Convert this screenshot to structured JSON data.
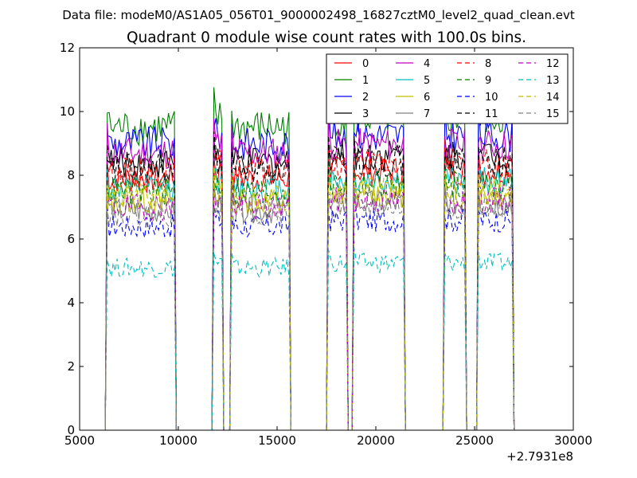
{
  "header": {
    "suptitle": "Data file: modeM0/AS1A05_056T01_9000002498_16827cztM0_level2_quad_clean.evt"
  },
  "chart_data": {
    "type": "line",
    "title": "Quadrant 0 module wise count rates with 100.0s bins.",
    "xlabel": "",
    "ylabel": "",
    "x_offset_label": "+2.7931e8",
    "xlim": [
      5000,
      30000
    ],
    "ylim": [
      0,
      12
    ],
    "xticks": [
      5000,
      10000,
      15000,
      20000,
      25000,
      30000
    ],
    "yticks": [
      0,
      2,
      4,
      6,
      8,
      10,
      12
    ],
    "xtick_labels": [
      "5000",
      "10000",
      "15000",
      "20000",
      "25000",
      "30000"
    ],
    "ytick_labels": [
      "0",
      "2",
      "4",
      "6",
      "8",
      "10",
      "12"
    ],
    "grid": false,
    "legend_position": "top-right",
    "bin_size_s": 100,
    "segments": [
      {
        "start": 6400,
        "end": 9800
      },
      {
        "start": 11800,
        "end": 12200
      },
      {
        "start": 12700,
        "end": 15600
      },
      {
        "start": 17600,
        "end": 18500
      },
      {
        "start": 18900,
        "end": 21400
      },
      {
        "start": 23500,
        "end": 24500
      },
      {
        "start": 25200,
        "end": 26900
      }
    ],
    "series": [
      {
        "name": "0",
        "color": "#ff0000",
        "dash": false,
        "mean": 7.9
      },
      {
        "name": "1",
        "color": "#008000",
        "dash": false,
        "mean": 9.5
      },
      {
        "name": "2",
        "color": "#0000ff",
        "dash": false,
        "mean": 9.0
      },
      {
        "name": "3",
        "color": "#000000",
        "dash": false,
        "mean": 8.4
      },
      {
        "name": "4",
        "color": "#bf00bf",
        "dash": false,
        "mean": 8.7
      },
      {
        "name": "5",
        "color": "#00bfbf",
        "dash": false,
        "mean": 7.6
      },
      {
        "name": "6",
        "color": "#bfbf00",
        "dash": false,
        "mean": 7.2
      },
      {
        "name": "7",
        "color": "#808080",
        "dash": false,
        "mean": 6.9
      },
      {
        "name": "8",
        "color": "#ff0000",
        "dash": true,
        "mean": 8.1
      },
      {
        "name": "9",
        "color": "#008000",
        "dash": true,
        "mean": 7.5
      },
      {
        "name": "10",
        "color": "#0000ff",
        "dash": true,
        "mean": 6.4
      },
      {
        "name": "11",
        "color": "#000000",
        "dash": true,
        "mean": 8.2
      },
      {
        "name": "12",
        "color": "#bf00bf",
        "dash": true,
        "mean": 7.0
      },
      {
        "name": "13",
        "color": "#00bfbf",
        "dash": true,
        "mean": 5.1
      },
      {
        "name": "14",
        "color": "#bfbf00",
        "dash": true,
        "mean": 7.3
      },
      {
        "name": "15",
        "color": "#808080",
        "dash": true,
        "mean": 6.8
      }
    ]
  }
}
